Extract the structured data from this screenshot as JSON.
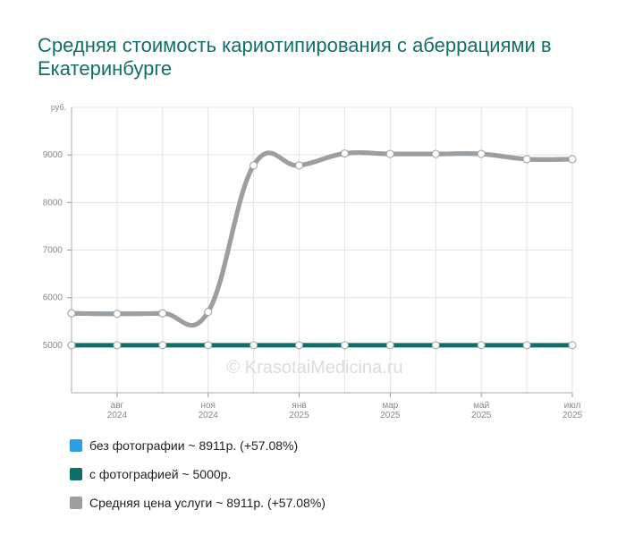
{
  "chart_data": {
    "type": "line",
    "title": "Средняя стоимость кариотипирования с аберрациями в Екатеринбурге",
    "ylabel": "руб.",
    "ylim": [
      4000,
      10000
    ],
    "yticks": [
      "5000",
      "6000",
      "7000",
      "8000",
      "9000"
    ],
    "xticks": [
      {
        "month": "авг",
        "year": "2024"
      },
      {
        "month": "ноя",
        "year": "2024"
      },
      {
        "month": "янв",
        "year": "2025"
      },
      {
        "month": "мар",
        "year": "2025"
      },
      {
        "month": "май",
        "year": "2025"
      },
      {
        "month": "июл",
        "year": "2025"
      }
    ],
    "grid": true,
    "watermark": "© KrasotaiMedicina.ru",
    "series": [
      {
        "name": "без фотографии ~ 8911р. (+57.08%)",
        "color": "#2b9ee6",
        "values": [
          5670,
          5660,
          5670,
          5700,
          8780,
          8780,
          9030,
          9020,
          9020,
          9020,
          8911,
          8911
        ]
      },
      {
        "name": "с фотографией ~ 5000р.",
        "color": "#0d7068",
        "values": [
          5000,
          5000,
          5000,
          5000,
          5000,
          5000,
          5000,
          5000,
          5000,
          5000,
          5000,
          5000
        ]
      },
      {
        "name": "Средняя цена услуги ~ 8911р. (+57.08%)",
        "color": "#9e9e9e",
        "values": [
          5670,
          5660,
          5670,
          5700,
          8780,
          8780,
          9030,
          9020,
          9020,
          9020,
          8911,
          8911
        ]
      }
    ]
  }
}
